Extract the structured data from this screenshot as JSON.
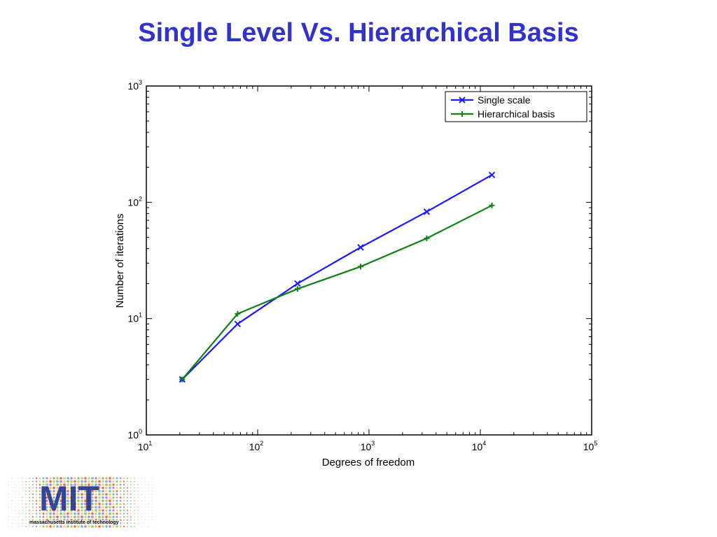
{
  "slide": {
    "title": "Single Level Vs. Hierarchical Basis"
  },
  "chart_data": {
    "type": "line",
    "title": "",
    "xlabel": "Degrees of freedom",
    "ylabel": "Number of iterations",
    "xscale": "log",
    "yscale": "log",
    "xlim": [
      10,
      100000
    ],
    "ylim": [
      1,
      1000
    ],
    "x_ticks": [
      {
        "base": "10",
        "exp": "1",
        "value": 10
      },
      {
        "base": "10",
        "exp": "2",
        "value": 100
      },
      {
        "base": "10",
        "exp": "3",
        "value": 1000
      },
      {
        "base": "10",
        "exp": "4",
        "value": 10000
      },
      {
        "base": "10",
        "exp": "5",
        "value": 100000
      }
    ],
    "y_ticks": [
      {
        "base": "10",
        "exp": "0",
        "value": 1
      },
      {
        "base": "10",
        "exp": "1",
        "value": 10
      },
      {
        "base": "10",
        "exp": "2",
        "value": 100
      },
      {
        "base": "10",
        "exp": "3",
        "value": 1000
      }
    ],
    "grid": false,
    "legend_position": "top-right",
    "series": [
      {
        "name": "Single scale",
        "color": "#1a1aff",
        "marker": "x",
        "x": [
          21,
          66,
          228,
          840,
          3300,
          12700
        ],
        "y": [
          3,
          9,
          20,
          41,
          83,
          172
        ]
      },
      {
        "name": "Hierarchical basis",
        "color": "#108010",
        "marker": "+",
        "x": [
          21,
          66,
          228,
          840,
          3300,
          12700
        ],
        "y": [
          3,
          11,
          18,
          28,
          49,
          94
        ]
      }
    ]
  },
  "logo": {
    "text": "MIT",
    "tagline": "massachusetts institute of technology"
  }
}
